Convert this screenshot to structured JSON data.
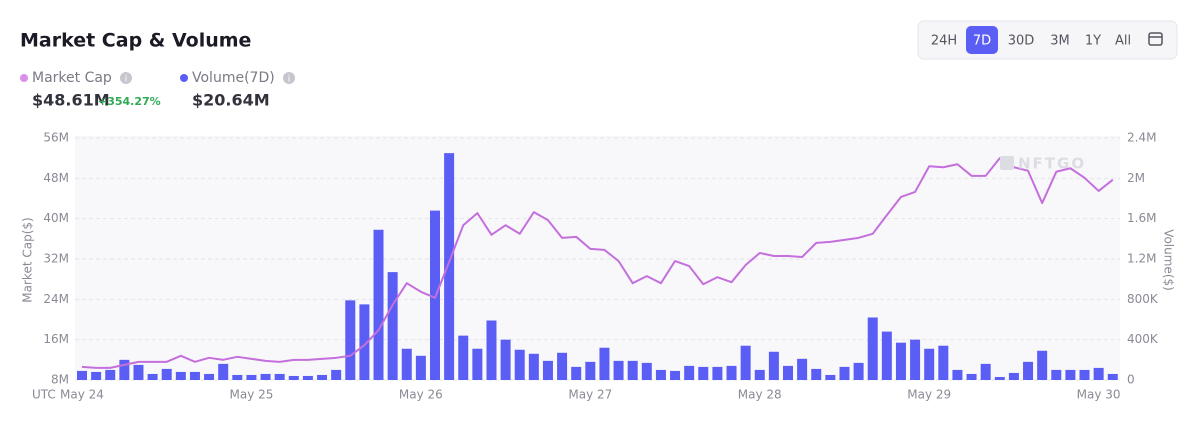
{
  "title": "Market Cap & Volume",
  "stats": [
    {
      "value": "$48.61M",
      "change": "+354.27%"
    },
    {
      "value": "$20.64M"
    }
  ],
  "range_buttons": {
    "options": [
      "24H",
      "7D",
      "30D",
      "3M",
      "1Y",
      "All"
    ],
    "selected": "7D"
  },
  "watermark": "NFTGO",
  "chart_data": {
    "type": "combo",
    "xlabel": "UTC",
    "ylabel": "Market Cap($)",
    "y2label": "Volume($)",
    "categories": [
      "May 24",
      null,
      null,
      null,
      null,
      null,
      null,
      null,
      null,
      null,
      null,
      null,
      "May 25",
      null,
      null,
      null,
      null,
      null,
      null,
      null,
      null,
      null,
      null,
      null,
      "May 26",
      null,
      null,
      null,
      null,
      null,
      null,
      null,
      null,
      null,
      null,
      null,
      "May 27",
      null,
      null,
      null,
      null,
      null,
      null,
      null,
      null,
      null,
      null,
      null,
      "May 28",
      null,
      null,
      null,
      null,
      null,
      null,
      null,
      null,
      null,
      null,
      null,
      "May 29",
      null,
      null,
      null,
      null,
      null,
      null,
      null,
      null,
      null,
      null,
      null,
      "May 30",
      null
    ],
    "series": [
      {
        "name": "Market Cap",
        "type": "line",
        "axis": "y",
        "color": "#c46fdc",
        "legend_color": "#d88fe8",
        "values": [
          10.6,
          10.4,
          10.4,
          11.0,
          11.6,
          11.6,
          11.6,
          12.8,
          11.6,
          12.4,
          12.0,
          12.6,
          12.2,
          11.8,
          11.6,
          12.0,
          12.0,
          12.2,
          12.4,
          12.8,
          14.9,
          17.9,
          22.9,
          27.2,
          25.5,
          24.3,
          31.4,
          38.7,
          41.1,
          36.8,
          38.7,
          37.0,
          41.3,
          39.7,
          36.2,
          36.4,
          34.0,
          33.8,
          31.6,
          27.2,
          28.6,
          27.2,
          31.6,
          30.6,
          27.0,
          28.4,
          27.4,
          30.8,
          33.2,
          32.6,
          32.6,
          32.4,
          35.2,
          35.4,
          35.8,
          36.2,
          37.0,
          40.7,
          44.3,
          45.3,
          50.4,
          50.2,
          50.8,
          48.5,
          48.5,
          52.0,
          50.2,
          49.5,
          43.1,
          49.3,
          50.0,
          48.1,
          45.5,
          47.7
        ]
      },
      {
        "name": "Volume(7D)",
        "type": "bar",
        "axis": "y2",
        "color": "#5b5ef4",
        "legend_color": "#5b5ef4",
        "values": [
          90000,
          80000,
          100000,
          200000,
          150000,
          60000,
          110000,
          80000,
          80000,
          60000,
          160000,
          50000,
          50000,
          60000,
          60000,
          40000,
          40000,
          50000,
          100000,
          790000,
          750000,
          1490000,
          1070000,
          310000,
          240000,
          1680000,
          2250000,
          440000,
          310000,
          590000,
          400000,
          300000,
          260000,
          190000,
          270000,
          130000,
          180000,
          320000,
          190000,
          190000,
          170000,
          100000,
          90000,
          140000,
          130000,
          130000,
          140000,
          340000,
          100000,
          280000,
          140000,
          210000,
          110000,
          50000,
          130000,
          170000,
          620000,
          480000,
          370000,
          400000,
          310000,
          340000,
          100000,
          60000,
          160000,
          30000,
          70000,
          180000,
          290000,
          100000,
          100000,
          100000,
          120000,
          60000
        ]
      }
    ],
    "ylim": [
      8,
      56
    ],
    "yticks": [
      {
        "value": 8,
        "label": "8M"
      },
      {
        "value": 16,
        "label": "16M"
      },
      {
        "value": 24,
        "label": "24M"
      },
      {
        "value": 32,
        "label": "32M"
      },
      {
        "value": 40,
        "label": "40M"
      },
      {
        "value": 48,
        "label": "48M"
      },
      {
        "value": 56,
        "label": "56M"
      }
    ],
    "y2lim": [
      0,
      2400000
    ],
    "y2ticks": [
      0,
      {
        "value": 400000,
        "label": "400K"
      },
      {
        "value": 800000,
        "label": "800K"
      },
      {
        "value": 1200000,
        "label": "1.2M"
      },
      {
        "value": 1600000,
        "label": "1.6M"
      },
      {
        "value": 2000000,
        "label": "2M"
      },
      {
        "value": 2400000,
        "label": "2.4M"
      }
    ],
    "grid": true
  }
}
